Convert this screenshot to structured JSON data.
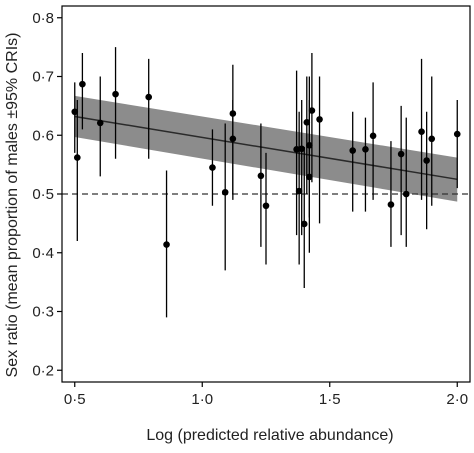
{
  "chart_data": {
    "type": "scatter",
    "xlabel": "Log (predicted relative abundance)",
    "ylabel": "Sex ratio (mean proportion of males ±95% CRIs)",
    "xlim": [
      0.45,
      2.05
    ],
    "ylim": [
      0.18,
      0.82
    ],
    "x_ticks": [
      0.5,
      1.0,
      1.5,
      2.0
    ],
    "x_tick_labels": [
      "0·5",
      "1·0",
      "1·5",
      "2·0"
    ],
    "y_ticks": [
      0.2,
      0.3,
      0.4,
      0.5,
      0.6,
      0.7,
      0.8
    ],
    "y_tick_labels": [
      "0·2",
      "0·3",
      "0·4",
      "0·5",
      "0·6",
      "0·7",
      "0·8"
    ],
    "reference_line": {
      "y": 0.5,
      "style": "dashed"
    },
    "fit_line": {
      "x": [
        0.5,
        2.0
      ],
      "y": [
        0.632,
        0.525
      ]
    },
    "confidence_band": {
      "x": [
        0.5,
        2.0
      ],
      "lower": [
        0.597,
        0.487
      ],
      "upper": [
        0.667,
        0.562
      ]
    },
    "points": [
      {
        "x": 0.5,
        "y": 0.64,
        "lo": 0.57,
        "hi": 0.69
      },
      {
        "x": 0.51,
        "y": 0.562,
        "lo": 0.42,
        "hi": 0.66
      },
      {
        "x": 0.53,
        "y": 0.687,
        "lo": 0.61,
        "hi": 0.74
      },
      {
        "x": 0.6,
        "y": 0.621,
        "lo": 0.53,
        "hi": 0.7
      },
      {
        "x": 0.66,
        "y": 0.67,
        "lo": 0.56,
        "hi": 0.75
      },
      {
        "x": 0.79,
        "y": 0.665,
        "lo": 0.56,
        "hi": 0.73
      },
      {
        "x": 0.86,
        "y": 0.414,
        "lo": 0.29,
        "hi": 0.54
      },
      {
        "x": 1.04,
        "y": 0.545,
        "lo": 0.48,
        "hi": 0.61
      },
      {
        "x": 1.09,
        "y": 0.503,
        "lo": 0.37,
        "hi": 0.62
      },
      {
        "x": 1.12,
        "y": 0.637,
        "lo": 0.5,
        "hi": 0.72
      },
      {
        "x": 1.12,
        "y": 0.594,
        "lo": 0.49,
        "hi": 0.66
      },
      {
        "x": 1.23,
        "y": 0.531,
        "lo": 0.41,
        "hi": 0.62
      },
      {
        "x": 1.25,
        "y": 0.48,
        "lo": 0.38,
        "hi": 0.57
      },
      {
        "x": 1.37,
        "y": 0.576,
        "lo": 0.43,
        "hi": 0.71
      },
      {
        "x": 1.38,
        "y": 0.505,
        "lo": 0.38,
        "hi": 0.64
      },
      {
        "x": 1.39,
        "y": 0.577,
        "lo": 0.43,
        "hi": 0.66
      },
      {
        "x": 1.4,
        "y": 0.449,
        "lo": 0.34,
        "hi": 0.58
      },
      {
        "x": 1.41,
        "y": 0.622,
        "lo": 0.5,
        "hi": 0.7
      },
      {
        "x": 1.42,
        "y": 0.583,
        "lo": 0.46,
        "hi": 0.7
      },
      {
        "x": 1.42,
        "y": 0.529,
        "lo": 0.4,
        "hi": 0.66
      },
      {
        "x": 1.43,
        "y": 0.642,
        "lo": 0.52,
        "hi": 0.74
      },
      {
        "x": 1.46,
        "y": 0.627,
        "lo": 0.45,
        "hi": 0.7
      },
      {
        "x": 1.59,
        "y": 0.574,
        "lo": 0.47,
        "hi": 0.64
      },
      {
        "x": 1.64,
        "y": 0.576,
        "lo": 0.47,
        "hi": 0.63
      },
      {
        "x": 1.67,
        "y": 0.599,
        "lo": 0.49,
        "hi": 0.69
      },
      {
        "x": 1.74,
        "y": 0.482,
        "lo": 0.41,
        "hi": 0.59
      },
      {
        "x": 1.78,
        "y": 0.568,
        "lo": 0.43,
        "hi": 0.65
      },
      {
        "x": 1.8,
        "y": 0.5,
        "lo": 0.41,
        "hi": 0.63
      },
      {
        "x": 1.86,
        "y": 0.606,
        "lo": 0.49,
        "hi": 0.73
      },
      {
        "x": 1.88,
        "y": 0.557,
        "lo": 0.44,
        "hi": 0.64
      },
      {
        "x": 1.9,
        "y": 0.594,
        "lo": 0.48,
        "hi": 0.7
      },
      {
        "x": 2.0,
        "y": 0.602,
        "lo": 0.51,
        "hi": 0.66
      }
    ],
    "colors": {
      "points": "#000000",
      "band": "#8c8c8c",
      "fit_line": "#2a2a2a",
      "reference_line": "#333333"
    }
  }
}
